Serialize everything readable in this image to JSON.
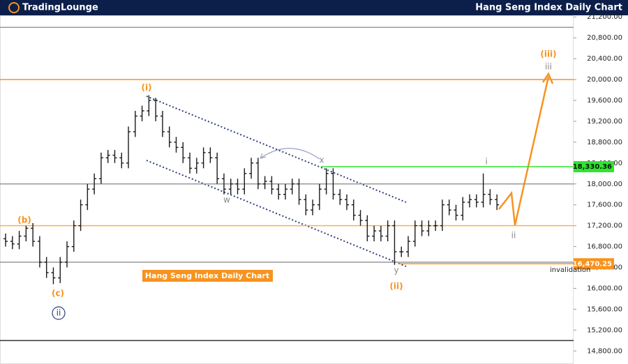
{
  "header": {
    "logo": "TradingLounge",
    "title": "Hang Seng Index Daily Chart"
  },
  "chart_data": {
    "type": "ohlc",
    "title": "Hang Seng Index Daily Chart",
    "color": "#1a1a1a",
    "ohlc": [
      [
        16950,
        17050,
        16800,
        16900
      ],
      [
        16900,
        17000,
        16750,
        16850
      ],
      [
        16850,
        17100,
        16750,
        17000
      ],
      [
        17000,
        17200,
        16900,
        17150
      ],
      [
        17150,
        17250,
        16800,
        16900
      ],
      [
        16900,
        17000,
        16400,
        16500
      ],
      [
        16500,
        16600,
        16200,
        16300
      ],
      [
        16300,
        16400,
        16080,
        16200
      ],
      [
        16200,
        16600,
        16100,
        16500
      ],
      [
        16500,
        16900,
        16400,
        16800
      ],
      [
        16800,
        17300,
        16700,
        17200
      ],
      [
        17200,
        17700,
        17100,
        17600
      ],
      [
        17600,
        18000,
        17500,
        17900
      ],
      [
        17900,
        18200,
        17800,
        18100
      ],
      [
        18100,
        18600,
        18000,
        18500
      ],
      [
        18500,
        18650,
        18400,
        18550
      ],
      [
        18550,
        18650,
        18400,
        18500
      ],
      [
        18500,
        18600,
        18300,
        18400
      ],
      [
        18400,
        19100,
        18300,
        19000
      ],
      [
        19000,
        19400,
        18900,
        19300
      ],
      [
        19300,
        19500,
        19200,
        19400
      ],
      [
        19400,
        19700,
        19300,
        19600
      ],
      [
        19600,
        19650,
        19200,
        19300
      ],
      [
        19300,
        19400,
        18900,
        19000
      ],
      [
        19000,
        19100,
        18700,
        18800
      ],
      [
        18800,
        18900,
        18600,
        18700
      ],
      [
        18700,
        18800,
        18400,
        18500
      ],
      [
        18500,
        18600,
        18200,
        18300
      ],
      [
        18300,
        18500,
        18200,
        18400
      ],
      [
        18400,
        18700,
        18300,
        18600
      ],
      [
        18600,
        18700,
        18400,
        18500
      ],
      [
        18500,
        18600,
        18000,
        18100
      ],
      [
        18100,
        18200,
        17800,
        17900
      ],
      [
        17900,
        18100,
        17800,
        18000
      ],
      [
        18000,
        18100,
        17800,
        17900
      ],
      [
        17900,
        18300,
        17800,
        18200
      ],
      [
        18200,
        18500,
        18100,
        18400
      ],
      [
        18400,
        18500,
        17900,
        18000
      ],
      [
        18000,
        18150,
        17900,
        18050
      ],
      [
        18050,
        18150,
        17800,
        17900
      ],
      [
        17900,
        18000,
        17700,
        17800
      ],
      [
        17800,
        18000,
        17700,
        17900
      ],
      [
        17900,
        18100,
        17800,
        18000
      ],
      [
        18000,
        18100,
        17600,
        17700
      ],
      [
        17700,
        17800,
        17400,
        17500
      ],
      [
        17500,
        17700,
        17400,
        17600
      ],
      [
        17600,
        18000,
        17500,
        17900
      ],
      [
        17900,
        18300,
        17800,
        18200
      ],
      [
        18200,
        18300,
        17700,
        17800
      ],
      [
        17800,
        17900,
        17600,
        17700
      ],
      [
        17700,
        17800,
        17500,
        17600
      ],
      [
        17600,
        17700,
        17300,
        17400
      ],
      [
        17400,
        17500,
        17200,
        17300
      ],
      [
        17300,
        17400,
        16900,
        17000
      ],
      [
        17000,
        17200,
        16900,
        17100
      ],
      [
        17100,
        17200,
        16900,
        17000
      ],
      [
        17000,
        17300,
        16900,
        17200
      ],
      [
        17200,
        17300,
        16450,
        16700
      ],
      [
        16700,
        16800,
        16600,
        16700
      ],
      [
        16700,
        17000,
        16600,
        16900
      ],
      [
        16900,
        17300,
        16800,
        17200
      ],
      [
        17200,
        17300,
        17000,
        17100
      ],
      [
        17100,
        17300,
        17000,
        17200
      ],
      [
        17200,
        17300,
        17100,
        17200
      ],
      [
        17200,
        17700,
        17100,
        17600
      ],
      [
        17600,
        17700,
        17400,
        17500
      ],
      [
        17500,
        17600,
        17300,
        17400
      ],
      [
        17400,
        17750,
        17300,
        17650
      ],
      [
        17650,
        17800,
        17550,
        17700
      ],
      [
        17700,
        17800,
        17550,
        17650
      ],
      [
        17650,
        18200,
        17550,
        17800
      ],
      [
        17800,
        17900,
        17600,
        17700
      ],
      [
        17700,
        17800,
        17500,
        17600
      ]
    ],
    "ylim": [
      14550,
      21230
    ],
    "yticks": [
      {
        "value": 14800,
        "label": "14,800.00"
      },
      {
        "value": 15200,
        "label": "15,200.00"
      },
      {
        "value": 15600,
        "label": "15,600.00"
      },
      {
        "value": 16000,
        "label": "16,000.00"
      },
      {
        "value": 16400,
        "label": "16,400.00"
      },
      {
        "value": 16800,
        "label": "16,800.00"
      },
      {
        "value": 17200,
        "label": "17,200.00"
      },
      {
        "value": 17600,
        "label": "17,600.00"
      },
      {
        "value": 18000,
        "label": "18,000.00"
      },
      {
        "value": 18400,
        "label": "18,400.00"
      },
      {
        "value": 18800,
        "label": "18,800.00"
      },
      {
        "value": 19200,
        "label": "19,200.00"
      },
      {
        "value": 19600,
        "label": "19,600.00"
      },
      {
        "value": 20000,
        "label": "20,000.00"
      },
      {
        "value": 20400,
        "label": "20,400.00"
      },
      {
        "value": 20800,
        "label": "20,800.00"
      },
      {
        "value": 21200,
        "label": "21,200.00"
      }
    ],
    "levels": [
      {
        "value": 21000,
        "color": "#999999"
      },
      {
        "value": 20000,
        "color": "#f7931e"
      },
      {
        "value": 18330.36,
        "label": "18,330.36",
        "color": "#2ee62e"
      },
      {
        "value": 18000,
        "color": "#999999"
      },
      {
        "value": 17200,
        "color": "#f7b24e"
      },
      {
        "value": 16500,
        "color": "#999999"
      },
      {
        "value": 16470.25,
        "label": "16,470.25",
        "color": "#f7931e"
      },
      {
        "value": 15000,
        "color": "#333333"
      }
    ],
    "annotations": [
      {
        "text": "(i)",
        "color": "#f7931e"
      },
      {
        "text": "(b)",
        "color": "#f7931e"
      },
      {
        "text": "(c)",
        "color": "#f7931e"
      },
      {
        "text": "ii",
        "color": "#2c3e7a",
        "circled": true
      },
      {
        "text": "w",
        "color": "#888888"
      },
      {
        "text": "x",
        "color": "#888888"
      },
      {
        "text": "y",
        "color": "#888888"
      },
      {
        "text": "(ii)",
        "color": "#f7931e"
      },
      {
        "text": "i",
        "color": "#888888"
      },
      {
        "text": "ii",
        "color": "#888888"
      },
      {
        "text": "(iii)",
        "color": "#f7931e"
      },
      {
        "text": "iii",
        "color": "#888888"
      },
      {
        "text": "invalidation",
        "color": "#222222"
      }
    ]
  }
}
